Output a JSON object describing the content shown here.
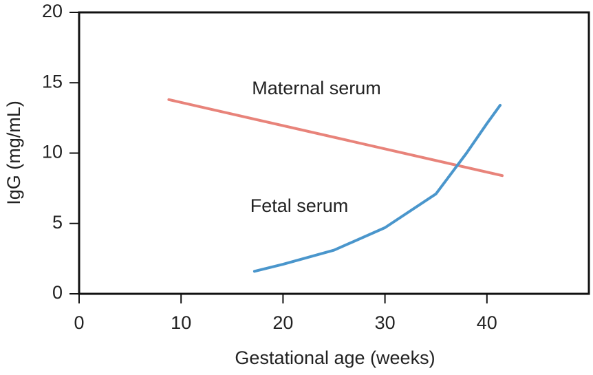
{
  "chart_data": {
    "type": "line",
    "x_label": "Gestational age (weeks)",
    "y_label": "IgG (mg/mL)",
    "xlim": [
      0,
      50
    ],
    "xticks": [
      0,
      10,
      20,
      30,
      40
    ],
    "ylim": [
      0,
      20
    ],
    "yticks": [
      0,
      5,
      10,
      15,
      20
    ],
    "series": [
      {
        "name": "Maternal serum",
        "color": "#e8837a",
        "x": [
          8.8,
          41.5
        ],
        "values": [
          13.8,
          8.4
        ]
      },
      {
        "name": "Fetal serum",
        "color": "#4a96cc",
        "x": [
          17.2,
          20,
          25,
          30,
          35,
          38,
          40,
          41.3
        ],
        "values": [
          1.6,
          2.1,
          3.1,
          4.7,
          7.1,
          10.0,
          12.1,
          13.4
        ]
      }
    ]
  }
}
